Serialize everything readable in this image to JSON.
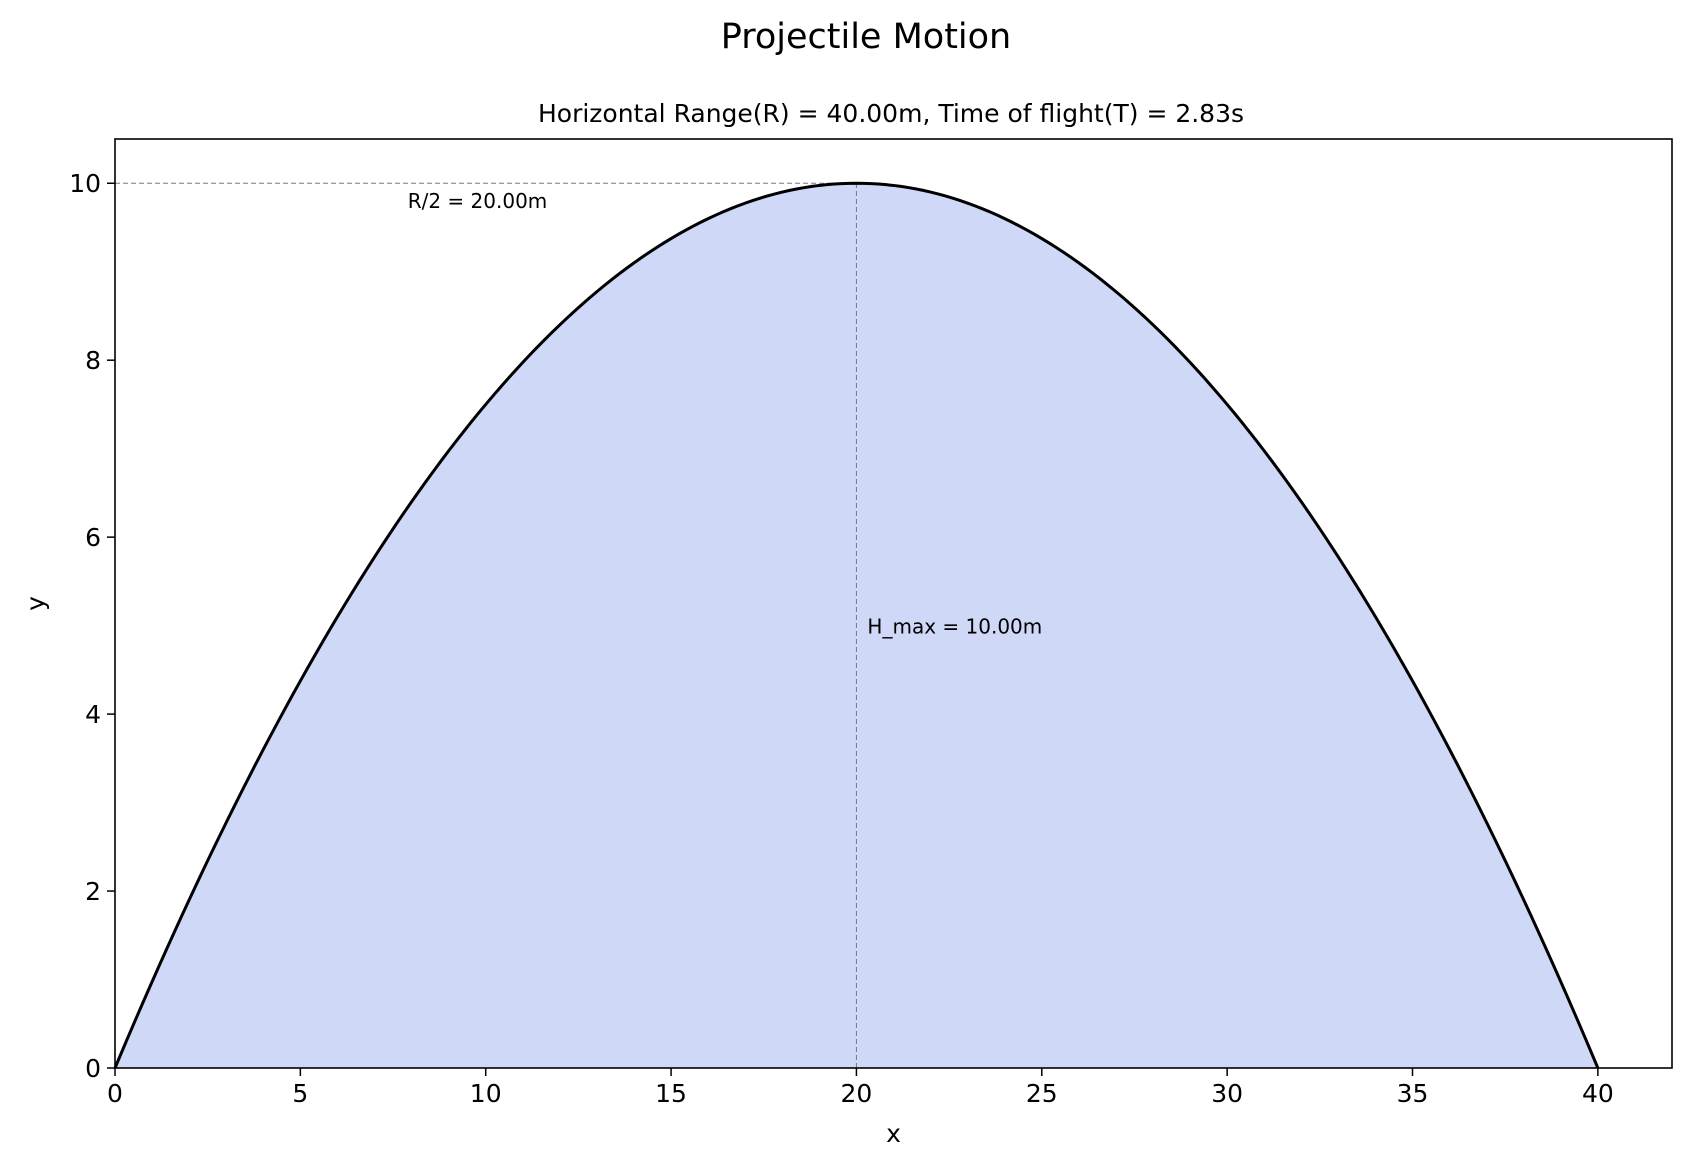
{
  "chart_data": {
    "type": "area",
    "title": "Projectile Motion",
    "subtitle": "Horizontal Range(R) = 40.00m, Time of flight(T) = 2.83s",
    "xlabel": "x",
    "ylabel": "y",
    "xlim": [
      0,
      42
    ],
    "ylim": [
      0,
      10.5
    ],
    "xticks": [
      0,
      5,
      10,
      15,
      20,
      25,
      30,
      35,
      40
    ],
    "yticks": [
      0,
      2,
      4,
      6,
      8,
      10
    ],
    "grid": false,
    "range": 40,
    "max_height": 10,
    "x": [
      0,
      2,
      4,
      6,
      8,
      10,
      12,
      14,
      16,
      18,
      20,
      22,
      24,
      26,
      28,
      30,
      32,
      34,
      36,
      38,
      40
    ],
    "y": [
      0,
      1.9,
      3.6,
      5.1,
      6.4,
      7.5,
      8.4,
      9.1,
      9.6,
      9.9,
      10,
      9.9,
      9.6,
      9.1,
      8.4,
      7.5,
      6.4,
      5.1,
      3.6,
      1.9,
      0
    ],
    "annotations": {
      "half_range": "R/2 = 20.00m",
      "max_height": "H_max = 10.00m"
    },
    "colors": {
      "line": "#000000",
      "fill": "#cfd8f6",
      "guide": "#707888"
    }
  }
}
